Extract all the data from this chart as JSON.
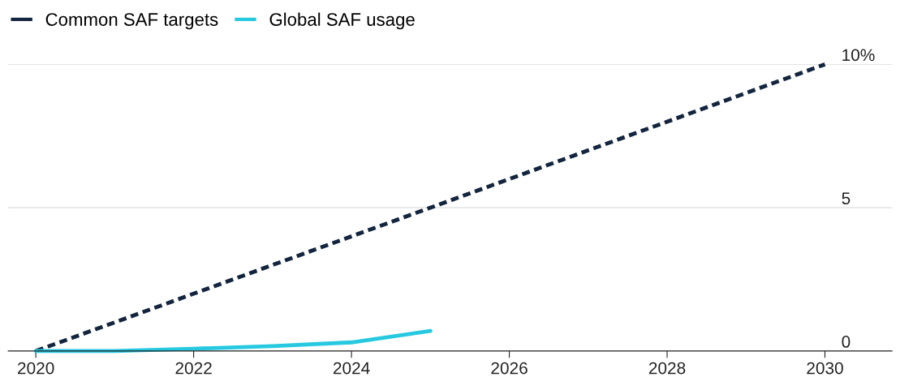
{
  "chart_data": {
    "type": "line",
    "x": [
      2020,
      2021,
      2022,
      2023,
      2024,
      2025
    ],
    "series": [
      {
        "name": "Common SAF targets",
        "color": "#14263f",
        "line_style": "dashed",
        "x": [
          2020,
          2030
        ],
        "values": [
          0,
          10
        ]
      },
      {
        "name": "Global SAF usage",
        "color": "#27c9e0",
        "line_style": "solid",
        "values": [
          0,
          0,
          0.08,
          0.17,
          0.3,
          0.7
        ]
      }
    ],
    "xlim": [
      2019.65,
      2030.85
    ],
    "xticks": [
      2020,
      2022,
      2024,
      2026,
      2028,
      2030
    ],
    "ylim": [
      0,
      10
    ],
    "yticks": [
      0,
      5,
      {
        "value": 10,
        "label": "10%"
      }
    ],
    "grid": "y",
    "legend": "top left"
  }
}
